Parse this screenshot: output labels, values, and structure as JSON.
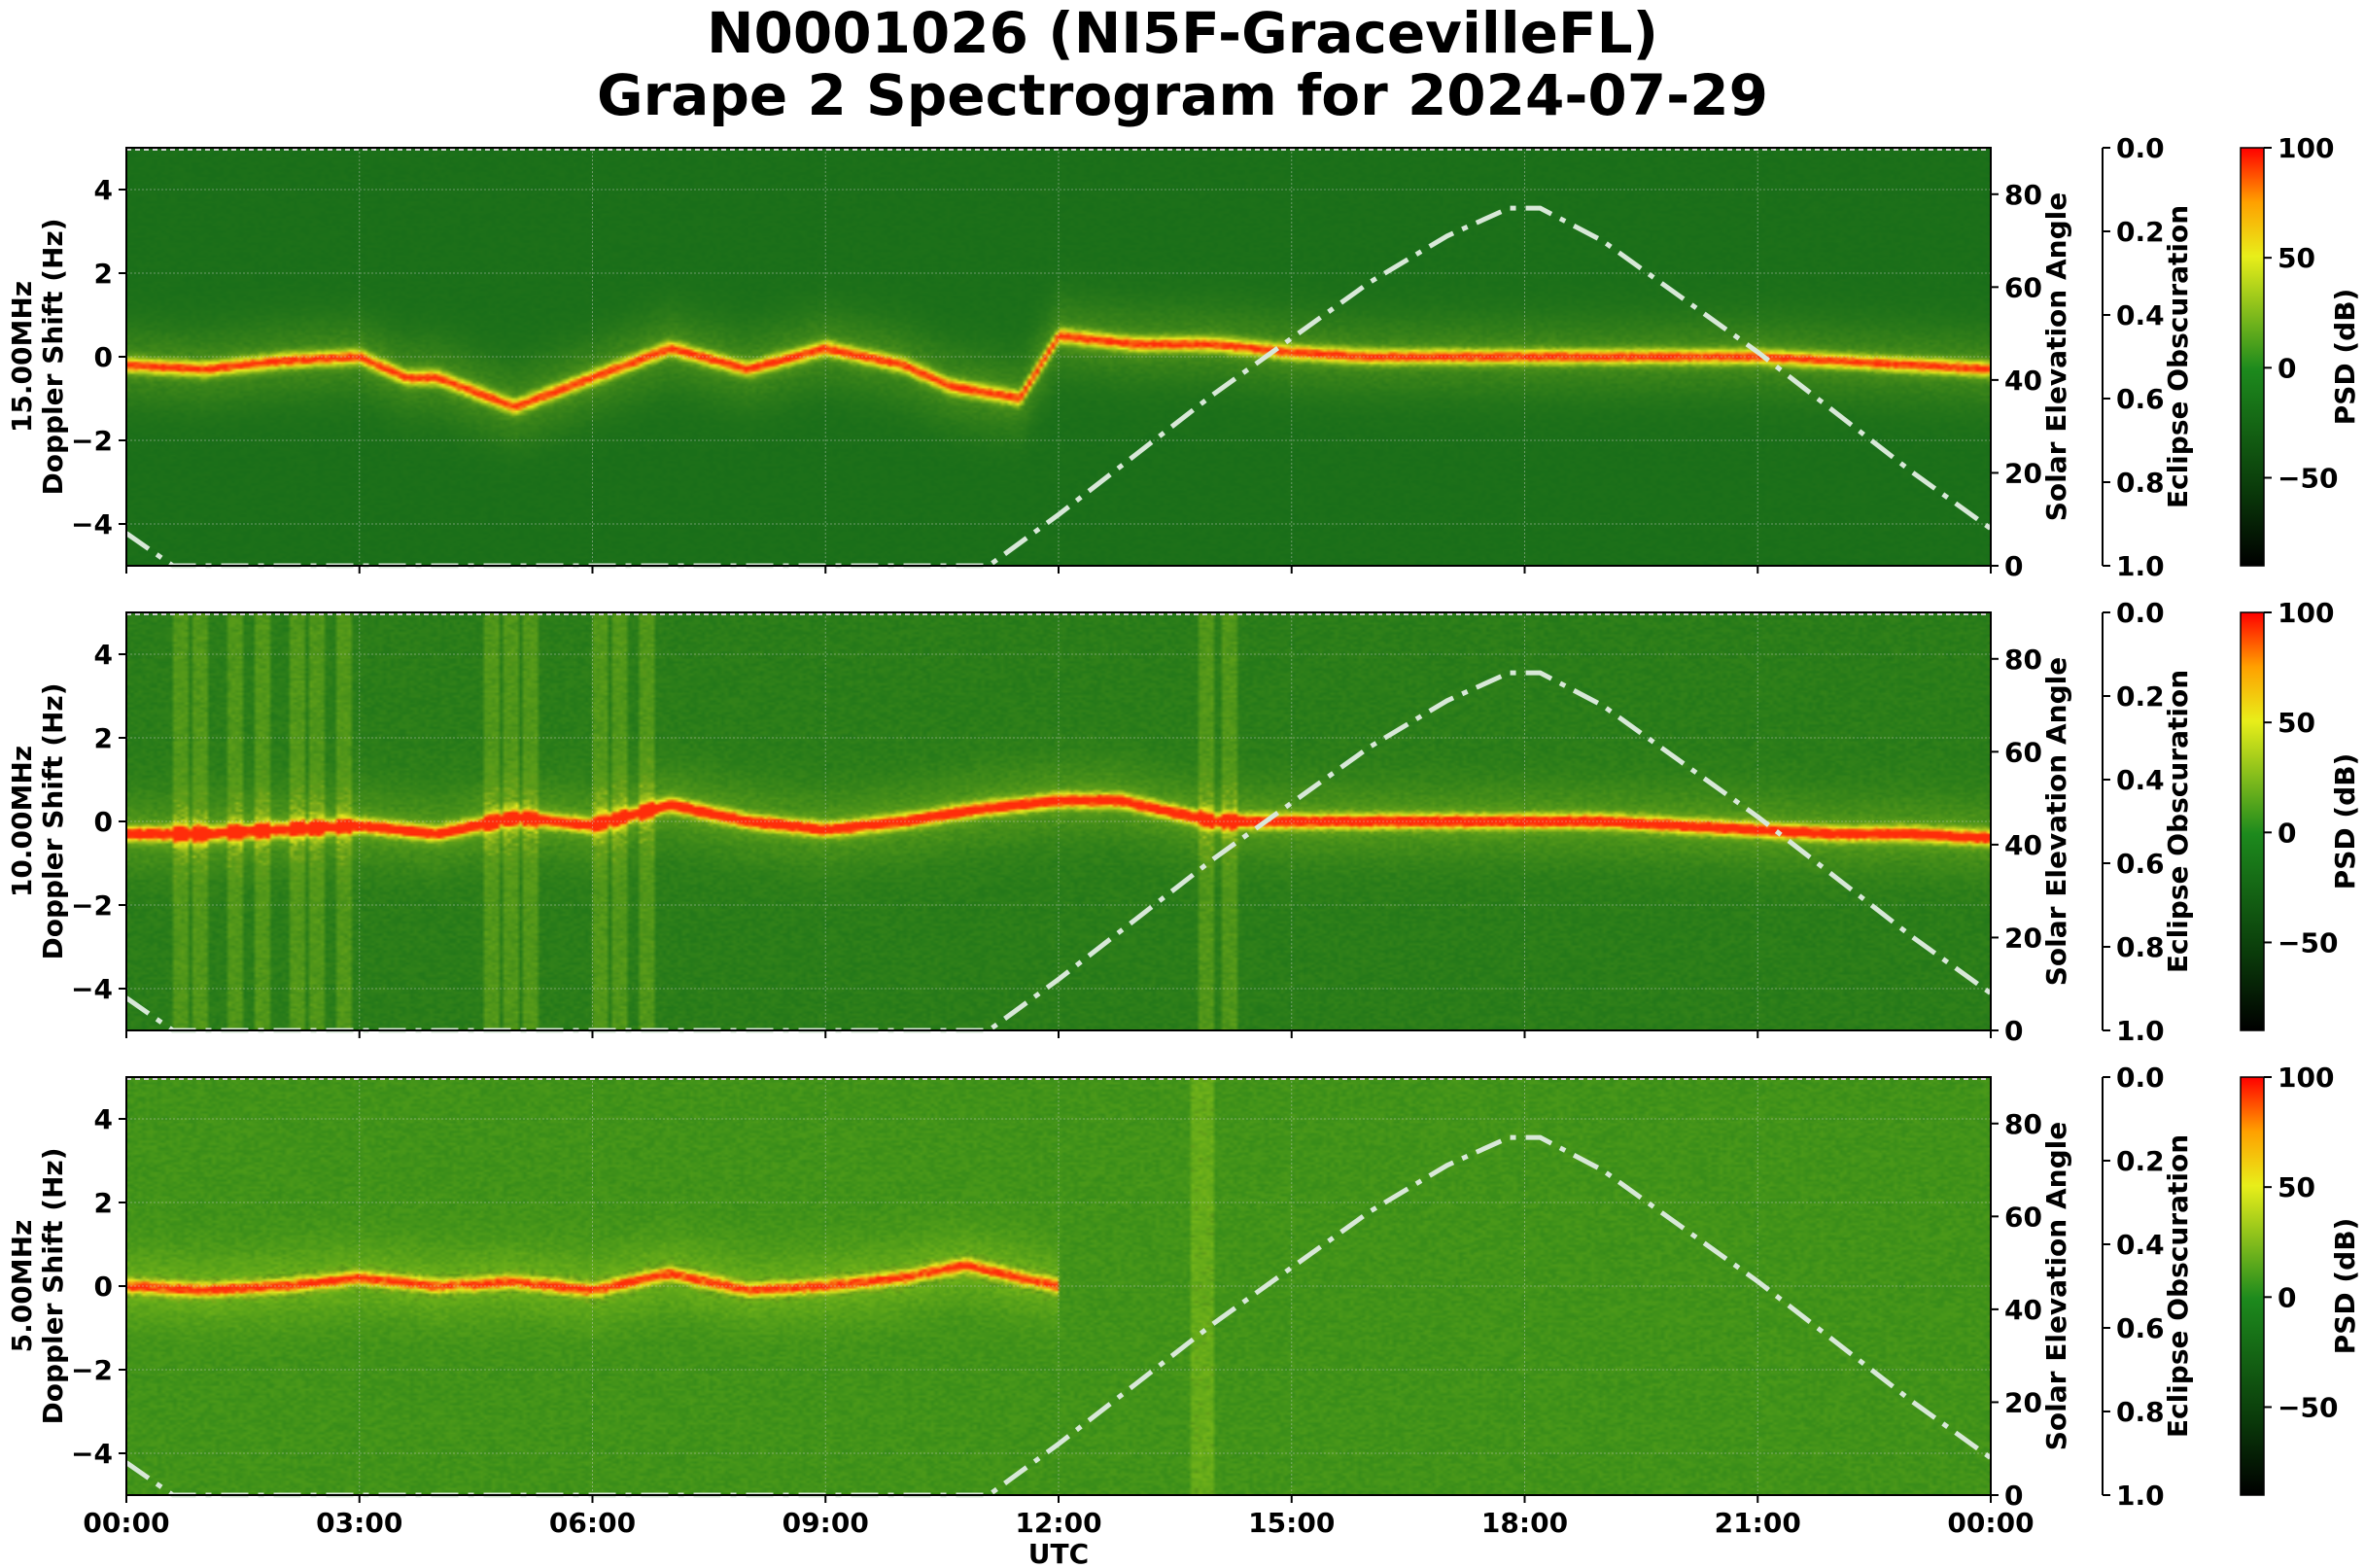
{
  "title": {
    "line1": "N0001026 (NI5F-GracevilleFL)",
    "line2": "Grape 2 Spectrogram for 2024-07-29"
  },
  "colors": {
    "background_green": "#1f7a1f",
    "signal_yellow": "#e8ee1a",
    "peak_red": "#ff1a00",
    "solar_curve": "#d8e8d8",
    "grid": "#d0d0d0"
  },
  "chart_data": {
    "type": "heatmap",
    "x_axis": {
      "label": "UTC",
      "ticks": [
        "00:00",
        "03:00",
        "06:00",
        "09:00",
        "12:00",
        "15:00",
        "18:00",
        "21:00",
        "00:00"
      ],
      "range_hours": [
        0,
        24
      ]
    },
    "y_axis": {
      "label_template": "Doppler Shift (Hz)",
      "ticks": [
        4,
        2,
        0,
        -2,
        -4
      ],
      "range": [
        -5,
        5
      ]
    },
    "solar_axis": {
      "label": "Solar Elevation Angle",
      "ticks": [
        80,
        60,
        40,
        20,
        0
      ],
      "range": [
        0,
        90
      ]
    },
    "eclipse_axis": {
      "label": "Eclipse Obscuration",
      "ticks": [
        "0.0",
        "0.2",
        "0.4",
        "0.6",
        "0.8",
        "1.0"
      ],
      "range": [
        0,
        1
      ]
    },
    "colorbar": {
      "label": "PSD (dB)",
      "ticks": [
        "100",
        "50",
        "0",
        "−50"
      ],
      "range": [
        -90,
        100
      ]
    },
    "solar_elevation": {
      "x_hours": [
        0,
        0.6,
        11.1,
        12,
        13,
        14,
        15,
        16,
        17,
        17.8,
        18.2,
        19,
        20,
        21,
        22,
        23,
        24
      ],
      "degrees": [
        7,
        0,
        0,
        11,
        24,
        37,
        49,
        61,
        71,
        77,
        77,
        70,
        58,
        46,
        33,
        20,
        8
      ]
    },
    "panels": [
      {
        "frequency": "15.00MHz",
        "noise": 0.04,
        "base": [
          25,
          110,
          25
        ],
        "line_intensity": 0.9,
        "trace_hours": [
          0,
          1,
          2,
          3,
          3.6,
          4,
          5,
          6,
          7,
          8,
          9,
          10,
          10.6,
          11.5,
          12,
          13,
          14,
          15,
          16,
          17,
          18,
          19,
          20,
          21,
          22,
          23,
          24
        ],
        "trace_hz": [
          -0.2,
          -0.3,
          -0.1,
          0,
          -0.5,
          -0.5,
          -1.2,
          -0.5,
          0.2,
          -0.3,
          0.2,
          -0.2,
          -0.7,
          -1.0,
          0.5,
          0.3,
          0.3,
          0.1,
          0,
          0,
          0,
          0,
          0,
          0,
          -0.1,
          -0.2,
          -0.3
        ],
        "stripes_hours": []
      },
      {
        "frequency": "10.00MHz",
        "noise": 0.12,
        "base": [
          35,
          120,
          25
        ],
        "line_intensity": 1.0,
        "trace_hours": [
          0,
          1,
          2,
          3,
          4,
          5,
          6,
          7,
          8,
          9,
          10,
          11,
          12,
          12.8,
          13.5,
          14,
          15,
          16,
          17,
          18,
          19,
          20,
          21,
          22,
          23,
          24
        ],
        "trace_hz": [
          -0.3,
          -0.3,
          -0.2,
          -0.1,
          -0.3,
          0.1,
          -0.1,
          0.4,
          0,
          -0.2,
          0,
          0.3,
          0.5,
          0.5,
          0.2,
          0,
          0,
          0,
          0,
          0,
          0,
          -0.1,
          -0.2,
          -0.3,
          -0.3,
          -0.4
        ],
        "stripes_hours": [
          0.7,
          0.95,
          1.4,
          1.75,
          2.2,
          2.45,
          2.8,
          4.7,
          4.95,
          5.2,
          6.1,
          6.35,
          6.7,
          13.9,
          14.2
        ]
      },
      {
        "frequency": "5.00MHz",
        "noise": 0.16,
        "base": [
          55,
          140,
          25
        ],
        "line_intensity": 0.85,
        "trace_hours": [
          0,
          1,
          2,
          3,
          4,
          5,
          6,
          7,
          8,
          9,
          10,
          10.8,
          11.5,
          12
        ],
        "trace_hz": [
          0,
          -0.1,
          0,
          0.2,
          0,
          0.1,
          -0.1,
          0.3,
          -0.1,
          0,
          0.2,
          0.5,
          0.2,
          0
        ],
        "stripes_hours": [
          13.8,
          13.9
        ]
      }
    ]
  }
}
